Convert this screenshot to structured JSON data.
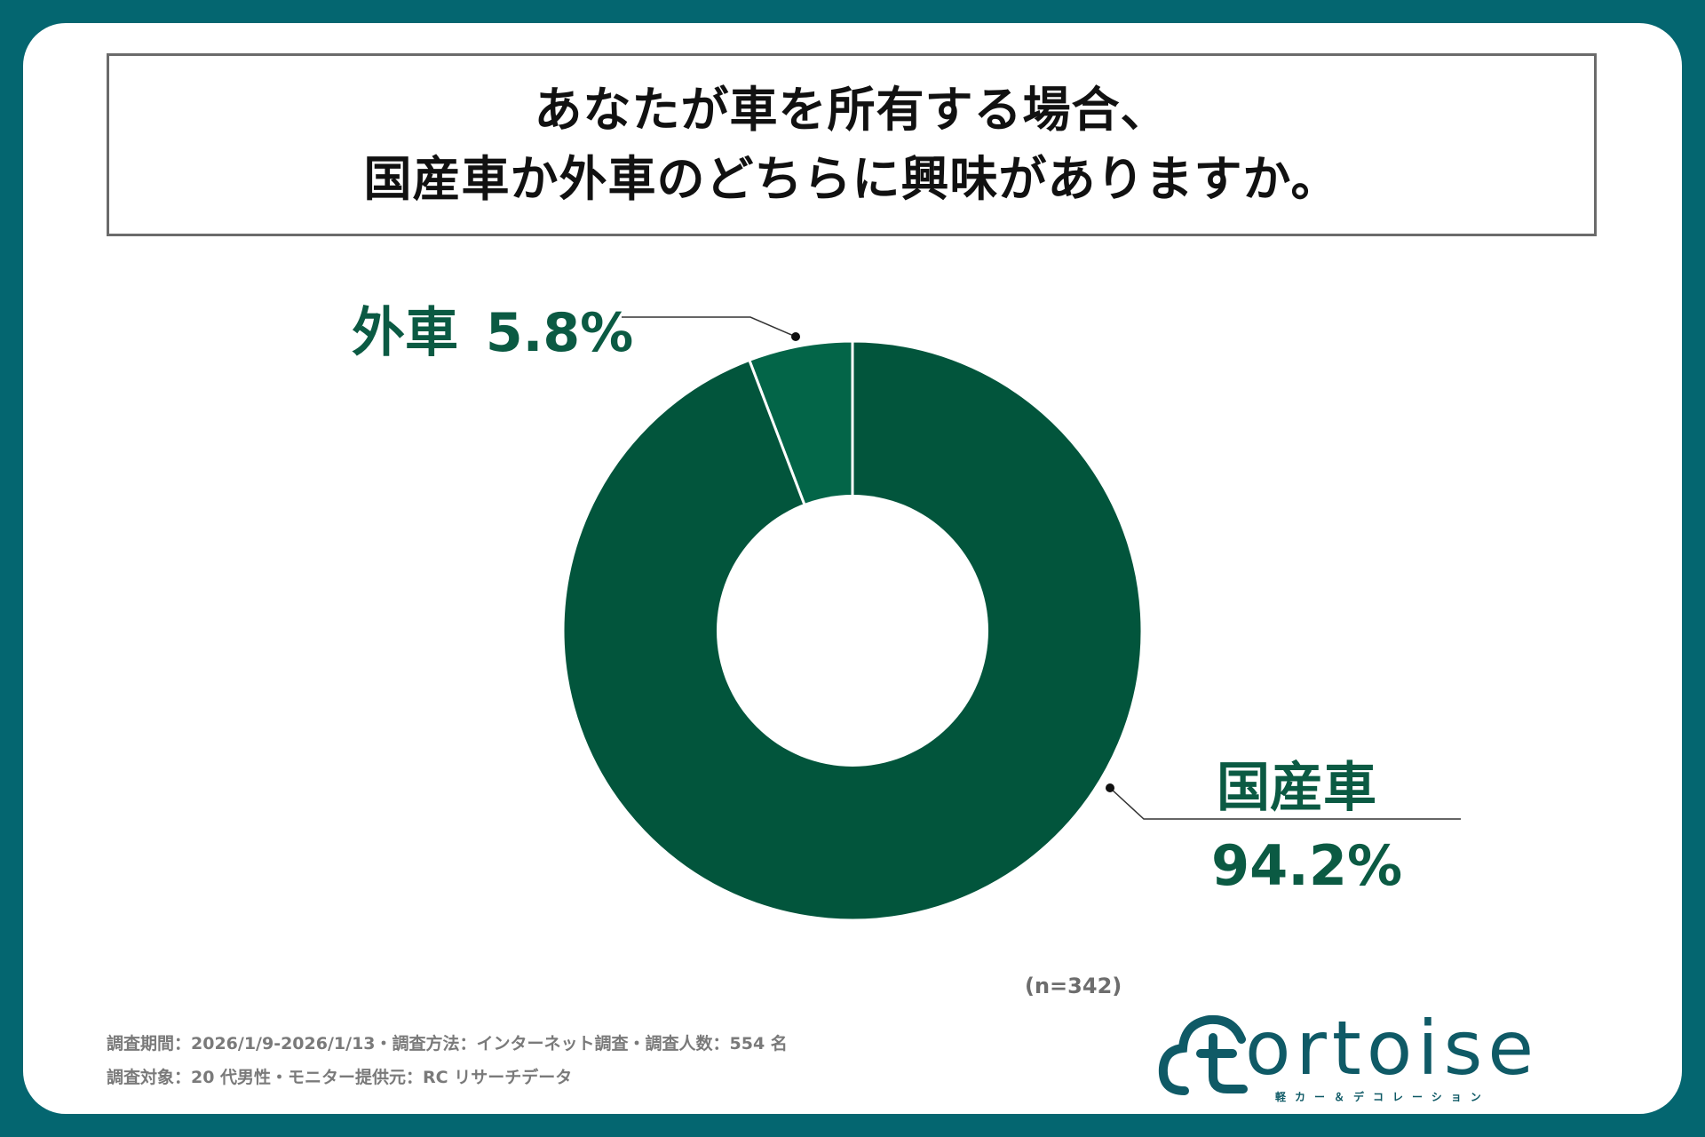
{
  "title": {
    "line1": "あなたが車を所有する場合、",
    "line2": "国産車か外車のどちらに興味がありますか。"
  },
  "chart_data": {
    "type": "pie",
    "variant": "donut",
    "slices": [
      {
        "label": "外車",
        "value": 5.8,
        "display": "5.8%",
        "color": "#036548"
      },
      {
        "label": "国産車",
        "value": 94.2,
        "display": "94.2%",
        "color": "#02553c"
      }
    ],
    "sample_note": "(n=342)"
  },
  "footer": {
    "line1": "調査期間：2026/1/9-2026/1/13・調査方法：インターネット調査・調査人数：554 名",
    "line2": "調査対象：20 代男性・モニター提供元：RC リサーチデータ"
  },
  "logo": {
    "icon": "cloud-t-logo-icon",
    "word": "ortoise",
    "sub": "軽カー＆デコレーション"
  },
  "colors": {
    "frame": "#046670",
    "label_green": "#0b5a43",
    "logo_teal": "#0f5a66"
  }
}
